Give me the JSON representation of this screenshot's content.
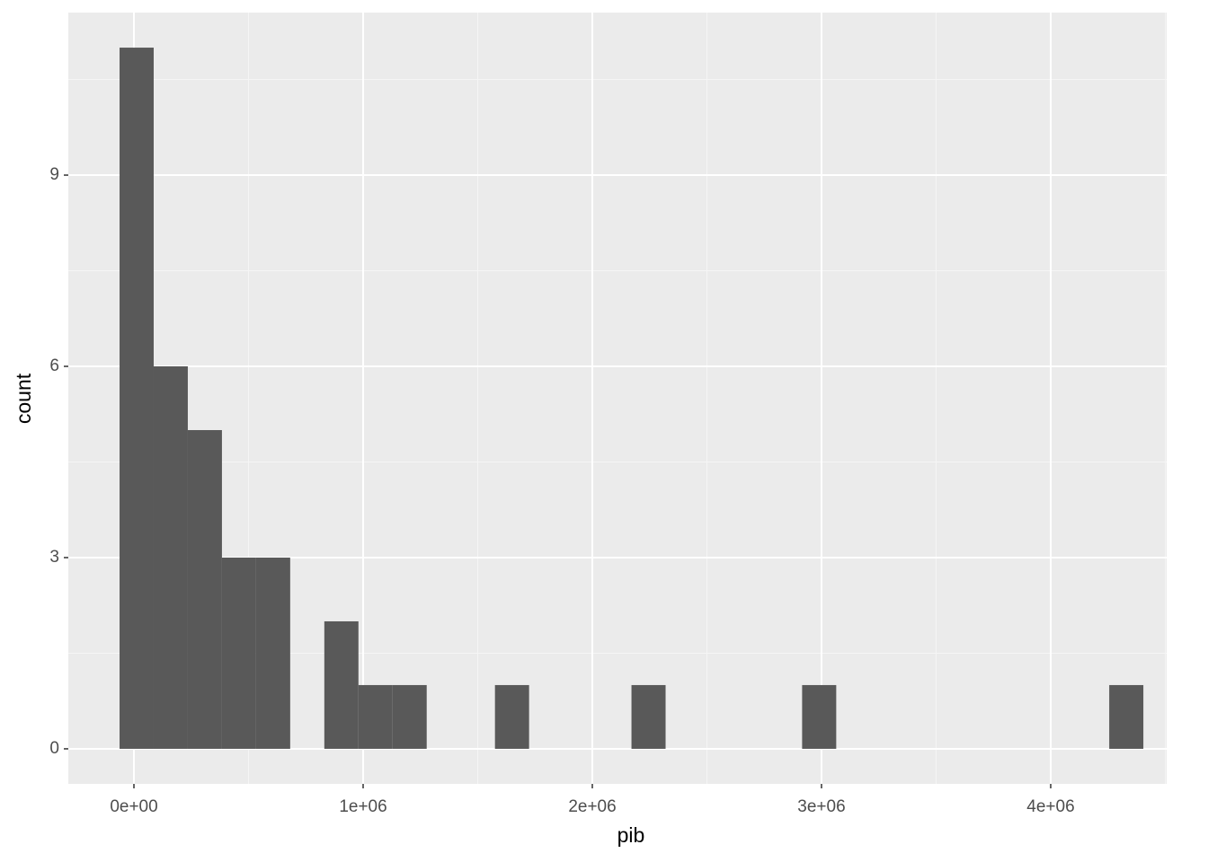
{
  "chart_data": {
    "type": "histogram",
    "x_label": "pib",
    "y_label": "count",
    "bins": [
      -62700,
      86200,
      235100,
      384000,
      532900,
      681800,
      830700,
      979600,
      1128500,
      1277400,
      1426300,
      1575200,
      1724100,
      1873000,
      2021900,
      2170800,
      2319700,
      2468600,
      2617500,
      2766400,
      2915300,
      3064200,
      3213100,
      3362000,
      3510900,
      3659800,
      3808700,
      3957600,
      4106500,
      4255400,
      4404300
    ],
    "values": [
      11,
      6,
      5,
      3,
      3,
      0,
      2,
      1,
      1,
      0,
      0,
      1,
      0,
      0,
      0,
      1,
      0,
      0,
      0,
      0,
      1,
      0,
      0,
      0,
      0,
      0,
      0,
      0,
      0,
      1
    ],
    "color": "#595959",
    "xlim": [
      -286300,
      4505900
    ],
    "ylim": [
      -0.55,
      11.55
    ],
    "xticks": [
      {
        "value": 0,
        "label": "0e+00"
      },
      {
        "value": 1000000,
        "label": "1e+06"
      },
      {
        "value": 2000000,
        "label": "2e+06"
      },
      {
        "value": 3000000,
        "label": "3e+06"
      },
      {
        "value": 4000000,
        "label": "4e+06"
      }
    ],
    "yticks": [
      0,
      3,
      6,
      9
    ],
    "grid": true
  }
}
